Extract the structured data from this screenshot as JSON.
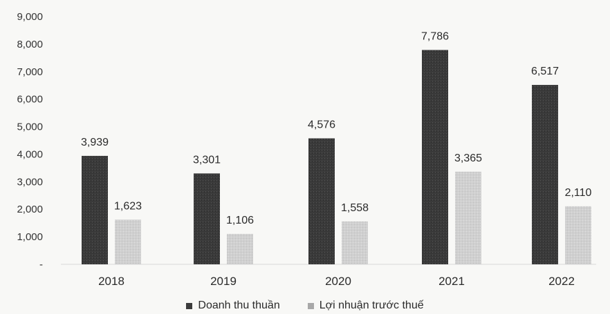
{
  "chart_data": {
    "type": "bar",
    "categories": [
      "2018",
      "2019",
      "2020",
      "2021",
      "2022"
    ],
    "series": [
      {
        "name": "Doanh thu thuần",
        "values": [
          3939,
          3301,
          4576,
          7786,
          6517
        ],
        "labels": [
          "3,939",
          "3,301",
          "4,576",
          "7,786",
          "6,517"
        ],
        "color": "#3c3c3c"
      },
      {
        "name": "Lợi nhuận trước thuế",
        "values": [
          1623,
          1106,
          1558,
          3365,
          2110
        ],
        "labels": [
          "1,623",
          "1,106",
          "1,558",
          "3,365",
          "2,110"
        ],
        "color": "#cfcfcf"
      }
    ],
    "yticks": [
      0,
      1000,
      2000,
      3000,
      4000,
      5000,
      6000,
      7000,
      8000,
      9000
    ],
    "ytick_labels": [
      "-",
      "1,000",
      "2,000",
      "3,000",
      "4,000",
      "5,000",
      "6,000",
      "7,000",
      "8,000",
      "9,000"
    ],
    "ylim": [
      0,
      9000
    ],
    "title": "",
    "xlabel": "",
    "ylabel": "",
    "grid": false,
    "legend_position": "bottom"
  }
}
